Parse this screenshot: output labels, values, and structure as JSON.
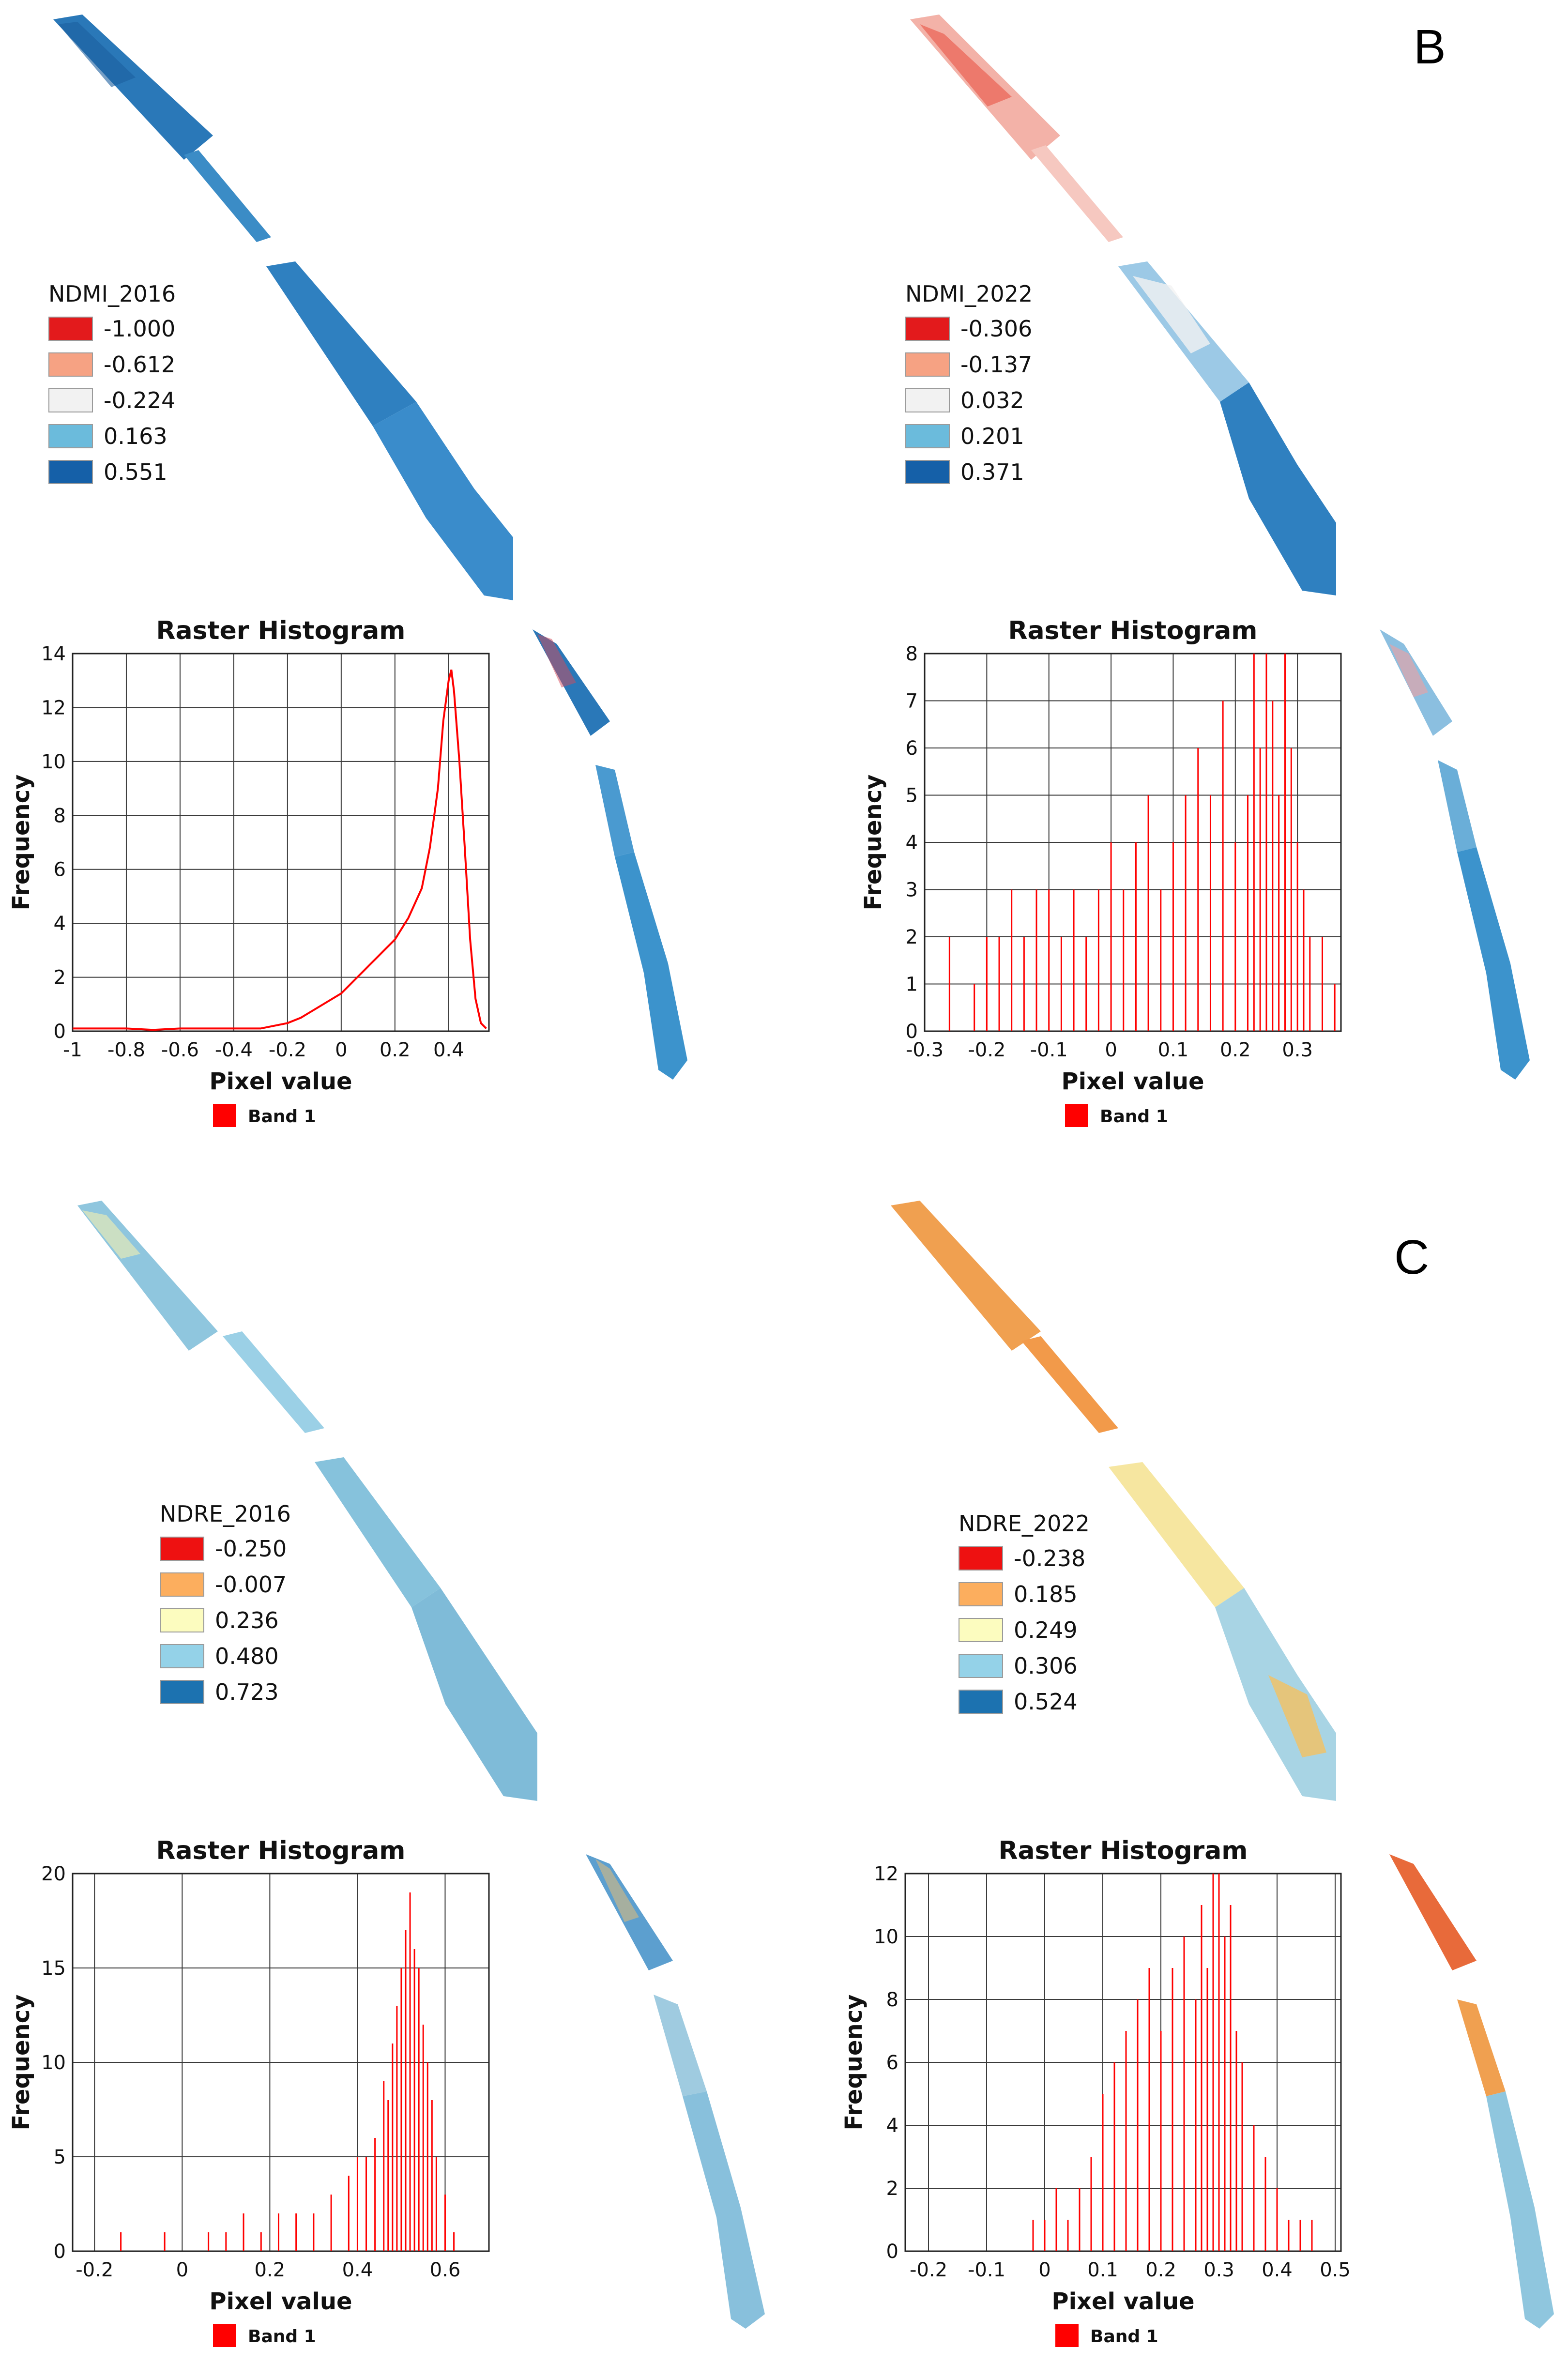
{
  "panel_labels": {
    "b": "B",
    "c": "C"
  },
  "legends": [
    {
      "id": "ndmi2016",
      "title": "NDMI_2016",
      "entries": [
        {
          "value": "-1.000",
          "color": "#e31a1c"
        },
        {
          "value": "-0.612",
          "color": "#f6a283"
        },
        {
          "value": "-0.224",
          "color": "#f2f2f2"
        },
        {
          "value": "0.163",
          "color": "#6bbbdc"
        },
        {
          "value": "0.551",
          "color": "#1560a8"
        }
      ]
    },
    {
      "id": "ndmi2022",
      "title": "NDMI_2022",
      "entries": [
        {
          "value": "-0.306",
          "color": "#e31a1c"
        },
        {
          "value": "-0.137",
          "color": "#f6a283"
        },
        {
          "value": "0.032",
          "color": "#f2f2f2"
        },
        {
          "value": "0.201",
          "color": "#6bbbdc"
        },
        {
          "value": "0.371",
          "color": "#1560a8"
        }
      ]
    },
    {
      "id": "ndre2016",
      "title": "NDRE_2016",
      "entries": [
        {
          "value": "-0.250",
          "color": "#ee1111"
        },
        {
          "value": "-0.007",
          "color": "#fcae5e"
        },
        {
          "value": "0.236",
          "color": "#fcfcbf"
        },
        {
          "value": "0.480",
          "color": "#94d2e8"
        },
        {
          "value": "0.723",
          "color": "#1c72b0"
        }
      ]
    },
    {
      "id": "ndre2022",
      "title": "NDRE_2022",
      "entries": [
        {
          "value": "-0.238",
          "color": "#ee1111"
        },
        {
          "value": "0.185",
          "color": "#fcae5e"
        },
        {
          "value": "0.249",
          "color": "#fcfcbf"
        },
        {
          "value": "0.306",
          "color": "#94d2e8"
        },
        {
          "value": "0.524",
          "color": "#1c72b0"
        }
      ]
    }
  ],
  "chart_data": [
    {
      "id": "h_ndmi2016",
      "type": "line",
      "title": "Raster Histogram",
      "xlabel": "Pixel value",
      "ylabel": "Frequency",
      "legend": "Band 1",
      "series_color": "#ff0000",
      "xlim": [
        -1.0,
        0.55
      ],
      "ylim": [
        0,
        14
      ],
      "xticks": [
        -1,
        -0.8,
        -0.6,
        -0.4,
        -0.2,
        0,
        0.2,
        0.4
      ],
      "xtick_labels": [
        "-1",
        "-0.8",
        "-0.6",
        "-0.4",
        "-0.2",
        "0",
        "0.2",
        "0.4"
      ],
      "yticks": [
        0,
        2,
        4,
        6,
        8,
        10,
        12,
        14
      ],
      "ytick_labels": [
        "0",
        "2",
        "4",
        "6",
        "8",
        "10",
        "12",
        "14"
      ],
      "x": [
        -1.0,
        -0.9,
        -0.8,
        -0.7,
        -0.6,
        -0.5,
        -0.4,
        -0.3,
        -0.2,
        -0.15,
        -0.1,
        -0.05,
        0.0,
        0.05,
        0.1,
        0.15,
        0.2,
        0.25,
        0.3,
        0.33,
        0.36,
        0.38,
        0.4,
        0.41,
        0.42,
        0.44,
        0.46,
        0.48,
        0.5,
        0.52,
        0.54
      ],
      "y": [
        0.1,
        0.1,
        0.1,
        0.05,
        0.1,
        0.1,
        0.1,
        0.1,
        0.3,
        0.5,
        0.8,
        1.1,
        1.4,
        1.9,
        2.4,
        2.9,
        3.4,
        4.2,
        5.3,
        6.8,
        9.0,
        11.5,
        13.0,
        13.4,
        12.6,
        10.0,
        6.8,
        3.4,
        1.2,
        0.3,
        0.1
      ]
    },
    {
      "id": "h_ndmi2022",
      "type": "bar",
      "title": "Raster Histogram",
      "xlabel": "Pixel value",
      "ylabel": "Frequency",
      "legend": "Band 1",
      "series_color": "#ff0000",
      "xlim": [
        -0.3,
        0.37
      ],
      "ylim": [
        0,
        8
      ],
      "xticks": [
        -0.3,
        -0.2,
        -0.1,
        0,
        0.1,
        0.2,
        0.3
      ],
      "xtick_labels": [
        "-0.3",
        "-0.2",
        "-0.1",
        "0",
        "0.1",
        "0.2",
        "0.3"
      ],
      "yticks": [
        0,
        1,
        2,
        3,
        4,
        5,
        6,
        7,
        8
      ],
      "ytick_labels": [
        "0",
        "1",
        "2",
        "3",
        "4",
        "5",
        "6",
        "7",
        "8"
      ],
      "x": [
        -0.26,
        -0.22,
        -0.2,
        -0.18,
        -0.16,
        -0.14,
        -0.12,
        -0.1,
        -0.08,
        -0.06,
        -0.04,
        -0.02,
        0.0,
        0.02,
        0.04,
        0.06,
        0.08,
        0.1,
        0.12,
        0.14,
        0.16,
        0.18,
        0.2,
        0.22,
        0.23,
        0.24,
        0.25,
        0.26,
        0.27,
        0.28,
        0.29,
        0.3,
        0.31,
        0.32,
        0.34,
        0.36
      ],
      "y": [
        2,
        1,
        2,
        2,
        3,
        2,
        3,
        3,
        2,
        3,
        2,
        3,
        4,
        3,
        4,
        5,
        3,
        4,
        5,
        6,
        5,
        7,
        4,
        5,
        8,
        6,
        8,
        7,
        5,
        8,
        6,
        4,
        3,
        2,
        2,
        1
      ]
    },
    {
      "id": "h_ndre2016",
      "type": "bar",
      "title": "Raster Histogram",
      "xlabel": "Pixel value",
      "ylabel": "Frequency",
      "legend": "Band 1",
      "series_color": "#ff0000",
      "xlim": [
        -0.25,
        0.7
      ],
      "ylim": [
        0,
        20
      ],
      "xticks": [
        -0.2,
        0,
        0.2,
        0.4,
        0.6
      ],
      "xtick_labels": [
        "-0.2",
        "0",
        "0.2",
        "0.4",
        "0.6"
      ],
      "yticks": [
        0,
        5,
        10,
        15,
        20
      ],
      "ytick_labels": [
        "0",
        "5",
        "10",
        "15",
        "20"
      ],
      "x": [
        -0.14,
        -0.04,
        0.06,
        0.1,
        0.14,
        0.18,
        0.22,
        0.26,
        0.3,
        0.34,
        0.38,
        0.4,
        0.42,
        0.44,
        0.46,
        0.47,
        0.48,
        0.49,
        0.5,
        0.51,
        0.52,
        0.53,
        0.54,
        0.55,
        0.56,
        0.57,
        0.58,
        0.6,
        0.62
      ],
      "y": [
        1,
        1,
        1,
        1,
        2,
        1,
        2,
        2,
        2,
        3,
        4,
        5,
        5,
        6,
        9,
        8,
        11,
        13,
        15,
        17,
        19,
        16,
        15,
        12,
        10,
        8,
        5,
        3,
        1
      ]
    },
    {
      "id": "h_ndre2022",
      "type": "bar",
      "title": "Raster Histogram",
      "xlabel": "Pixel value",
      "ylabel": "Frequency",
      "legend": "Band 1",
      "series_color": "#ff0000",
      "xlim": [
        -0.24,
        0.51
      ],
      "ylim": [
        0,
        12
      ],
      "xticks": [
        -0.2,
        -0.1,
        0,
        0.1,
        0.2,
        0.3,
        0.4,
        0.5
      ],
      "xtick_labels": [
        "-0.2",
        "-0.1",
        "0",
        "0.1",
        "0.2",
        "0.3",
        "0.4",
        "0.5"
      ],
      "yticks": [
        0,
        2,
        4,
        6,
        8,
        10,
        12
      ],
      "ytick_labels": [
        "0",
        "2",
        "4",
        "6",
        "8",
        "10",
        "12"
      ],
      "x": [
        -0.02,
        0.0,
        0.02,
        0.04,
        0.06,
        0.08,
        0.1,
        0.12,
        0.14,
        0.16,
        0.18,
        0.2,
        0.22,
        0.24,
        0.26,
        0.27,
        0.28,
        0.29,
        0.3,
        0.31,
        0.32,
        0.33,
        0.34,
        0.36,
        0.38,
        0.4,
        0.42,
        0.44,
        0.46
      ],
      "y": [
        1,
        1,
        2,
        1,
        2,
        3,
        5,
        6,
        7,
        8,
        9,
        7,
        9,
        10,
        8,
        11,
        9,
        12,
        12,
        10,
        11,
        7,
        6,
        4,
        3,
        2,
        1,
        1,
        1
      ]
    }
  ]
}
